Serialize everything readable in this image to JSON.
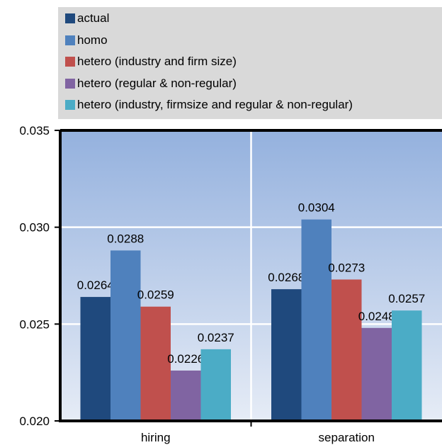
{
  "chart_data": {
    "type": "bar",
    "categories": [
      "hiring",
      "separation"
    ],
    "series": [
      {
        "name": "actual",
        "color": "#1f497d",
        "values": [
          0.0264,
          0.0268
        ],
        "labels": [
          "0.0264",
          "0.0268"
        ]
      },
      {
        "name": "homo",
        "color": "#4f81bd",
        "values": [
          0.0288,
          0.0304
        ],
        "labels": [
          "0.0288",
          "0.0304"
        ]
      },
      {
        "name": "hetero (industry and firm size)",
        "color": "#c0504d",
        "values": [
          0.0259,
          0.0273
        ],
        "labels": [
          "0.0259",
          "0.0273"
        ]
      },
      {
        "name": "hetero (regular & non-regular)",
        "color": "#8064a2",
        "values": [
          0.0226,
          0.0248
        ],
        "labels": [
          "0.0226",
          "0.0248"
        ]
      },
      {
        "name": "hetero (industry,  firmsize and regular & non-regular)",
        "color": "#4bacc6",
        "values": [
          0.0237,
          0.0257
        ],
        "labels": [
          "0.0237",
          "0.0257"
        ]
      }
    ],
    "ylim": [
      0.02,
      0.035
    ],
    "yticks": [
      "0.020",
      "0.025",
      "0.030",
      "0.035"
    ],
    "grid": true,
    "legend": "top",
    "xlabel": "",
    "ylabel": "",
    "title": ""
  }
}
